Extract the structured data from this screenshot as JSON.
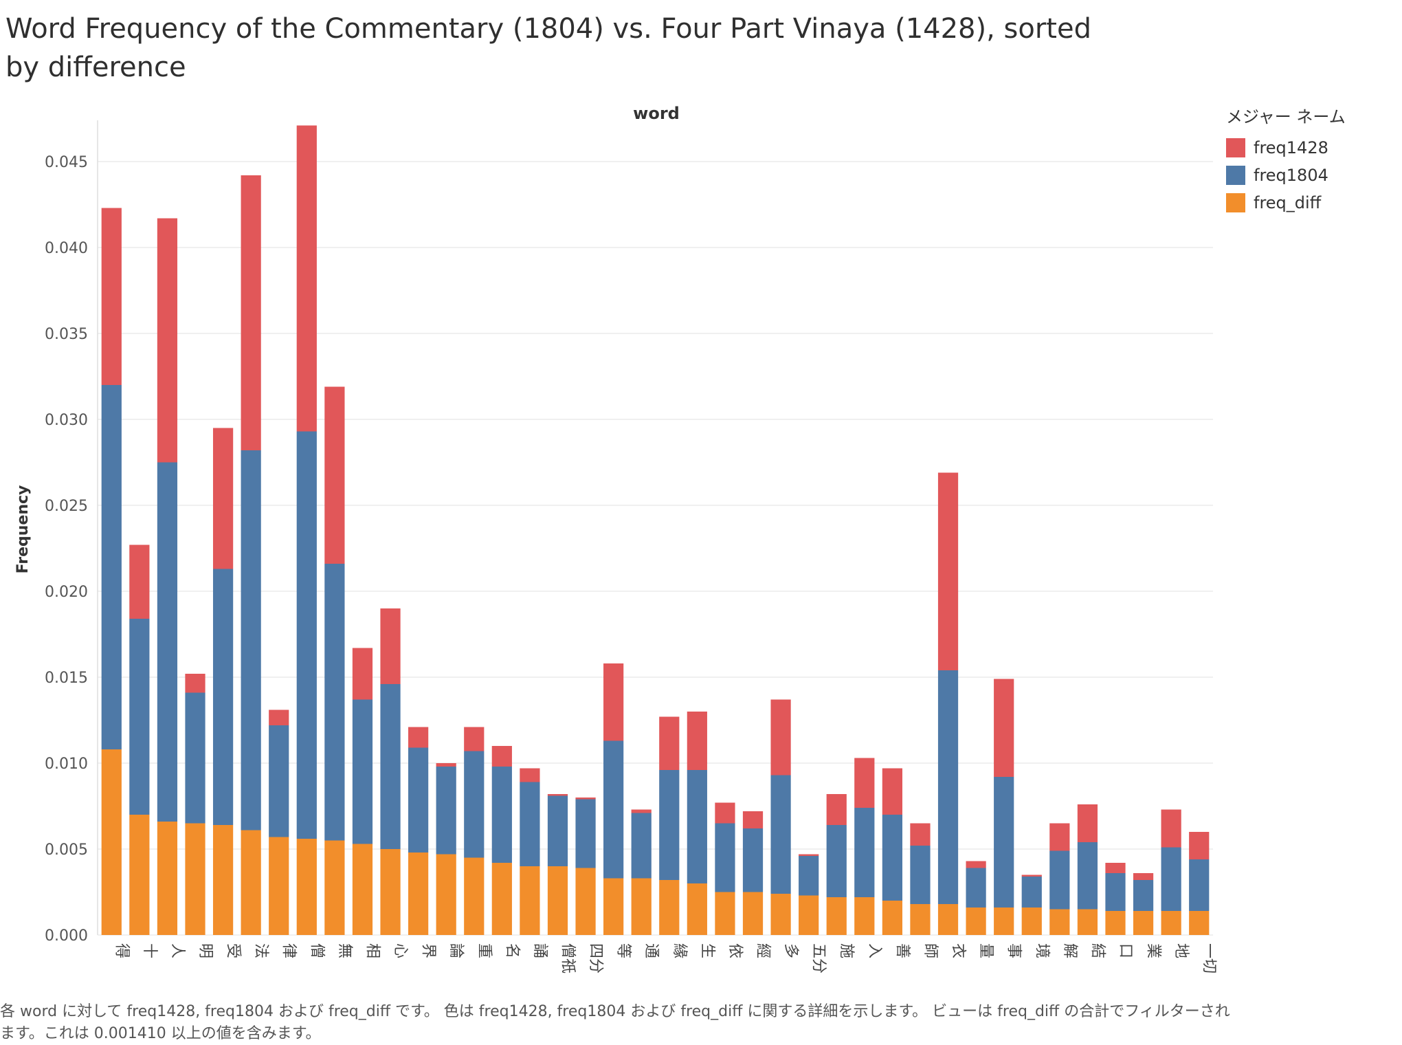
{
  "title": "Word Frequency of the Commentary (1804) vs. Four Part Vinaya (1428), sorted by difference",
  "footer": "各 word に対して freq1428, freq1804 および freq_diff です。 色は freq1428, freq1804 および freq_diff に関する詳細を示します。 ビューは freq_diff の合計でフィルターされます。これは 0.001410 以上の値を含みます。",
  "legend": {
    "title": "メジャー ネーム",
    "items": [
      {
        "label": "freq1428",
        "color": "#e15759"
      },
      {
        "label": "freq1804",
        "color": "#4e79a7"
      },
      {
        "label": "freq_diff",
        "color": "#f28e2b"
      }
    ]
  },
  "chart_data": {
    "type": "bar",
    "stacked": true,
    "xlabel": "word",
    "ylabel": "Frequency",
    "ylim": [
      0,
      0.047
    ],
    "yticks": [
      "0.000",
      "0.005",
      "0.010",
      "0.015",
      "0.020",
      "0.025",
      "0.030",
      "0.035",
      "0.040",
      "0.045"
    ],
    "grid": true,
    "legend_position": "right",
    "categories": [
      "得",
      "十",
      "人",
      "明",
      "受",
      "法",
      "律",
      "僧",
      "無",
      "相",
      "心",
      "界",
      "論",
      "重",
      "名",
      "誦",
      "僧祇",
      "四分",
      "等",
      "通",
      "緣",
      "生",
      "依",
      "經",
      "多",
      "五分",
      "施",
      "入",
      "善",
      "師",
      "衣",
      "量",
      "事",
      "境",
      "解",
      "結",
      "口",
      "業",
      "地",
      "一切"
    ],
    "series": [
      {
        "name": "freq_diff",
        "color": "#f28e2b",
        "values": [
          0.0108,
          0.007,
          0.0066,
          0.0065,
          0.0064,
          0.0061,
          0.0057,
          0.0056,
          0.0055,
          0.0053,
          0.005,
          0.0048,
          0.0047,
          0.0045,
          0.0042,
          0.004,
          0.004,
          0.0039,
          0.0033,
          0.0033,
          0.0032,
          0.003,
          0.0025,
          0.0025,
          0.0024,
          0.0023,
          0.0022,
          0.0022,
          0.002,
          0.0018,
          0.0018,
          0.0016,
          0.0016,
          0.0016,
          0.0015,
          0.0015,
          0.0014,
          0.0014,
          0.0014,
          0.0014
        ]
      },
      {
        "name": "freq1804",
        "color": "#4e79a7",
        "values": [
          0.0212,
          0.0114,
          0.0209,
          0.0076,
          0.0149,
          0.0221,
          0.0065,
          0.0237,
          0.0161,
          0.0084,
          0.0096,
          0.0061,
          0.0051,
          0.0062,
          0.0056,
          0.0049,
          0.0041,
          0.004,
          0.008,
          0.0038,
          0.0064,
          0.0066,
          0.004,
          0.0037,
          0.0069,
          0.0023,
          0.0042,
          0.0052,
          0.005,
          0.0034,
          0.0136,
          0.0023,
          0.0076,
          0.0018,
          0.0034,
          0.0039,
          0.0022,
          0.0018,
          0.0037,
          0.003
        ]
      },
      {
        "name": "freq1428",
        "color": "#e15759",
        "values": [
          0.0103,
          0.0043,
          0.0142,
          0.0011,
          0.0082,
          0.016,
          0.0009,
          0.0178,
          0.0103,
          0.003,
          0.0044,
          0.0012,
          0.0002,
          0.0014,
          0.0012,
          0.0008,
          0.0001,
          0.0001,
          0.0045,
          0.0002,
          0.0031,
          0.0034,
          0.0012,
          0.001,
          0.0044,
          0.0001,
          0.0018,
          0.0029,
          0.0027,
          0.0013,
          0.0115,
          0.0004,
          0.0057,
          0.0001,
          0.0016,
          0.0022,
          0.0006,
          0.0004,
          0.0022,
          0.0016
        ]
      }
    ]
  }
}
